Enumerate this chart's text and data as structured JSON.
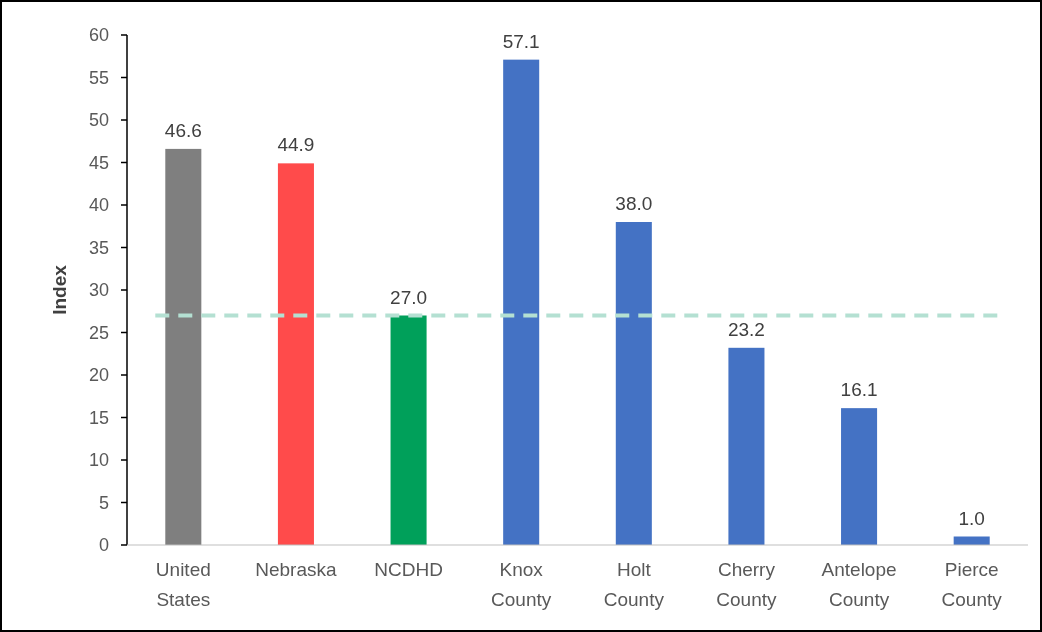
{
  "chart_data": {
    "type": "bar",
    "ylabel": "Index",
    "categories": [
      "United States",
      "Nebraska",
      "NCDHD",
      "Knox County",
      "Holt County",
      "Cherry County",
      "Antelope County",
      "Pierce County"
    ],
    "values": [
      46.6,
      44.9,
      27.0,
      57.1,
      38.0,
      23.2,
      16.1,
      1.0
    ],
    "value_labels": [
      "46.6",
      "44.9",
      "27.0",
      "57.1",
      "38.0",
      "23.2",
      "16.1",
      "1.0"
    ],
    "colors": [
      "#7f7f7f",
      "#ff4b4b",
      "#00a05a",
      "#4472c4",
      "#4472c4",
      "#4472c4",
      "#4472c4",
      "#4472c4"
    ],
    "ylim": [
      0,
      60
    ],
    "yticks": [
      0,
      5,
      10,
      15,
      20,
      25,
      30,
      35,
      40,
      45,
      50,
      55,
      60
    ],
    "ref_lines": [
      {
        "axis": "y",
        "value": 27.0,
        "color": "#b4e0d2",
        "line_style": "dashed"
      }
    ],
    "grid": false
  }
}
